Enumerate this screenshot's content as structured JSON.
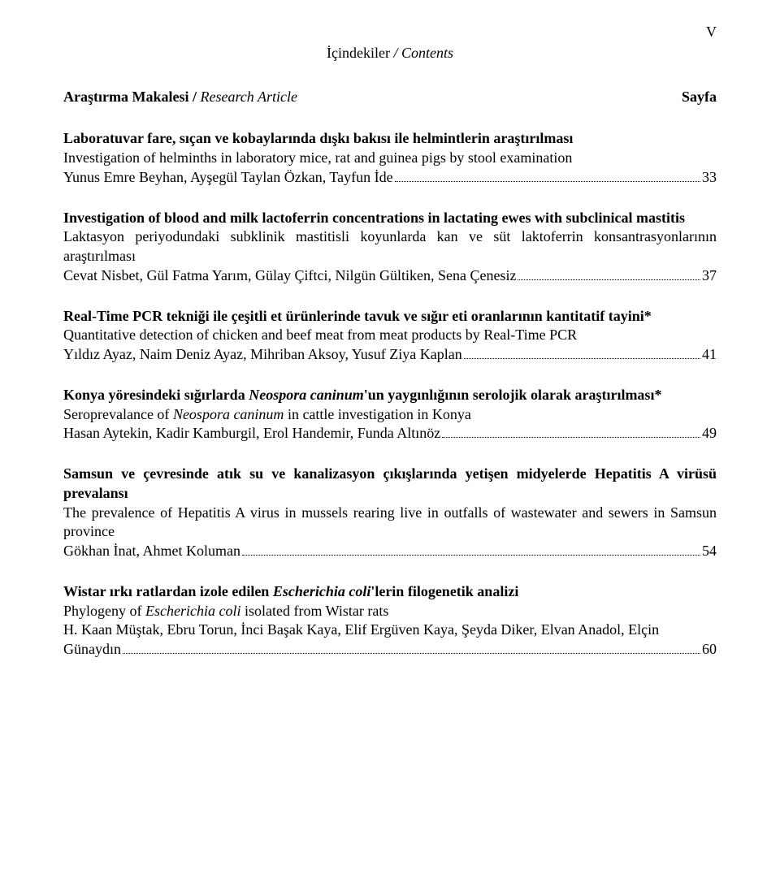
{
  "page_number_roman": "V",
  "header": {
    "tr": "İçindekiler",
    "en": "Contents"
  },
  "section": {
    "left_tr": "Araştırma Makalesi",
    "left_en": "Research Article",
    "right": "Sayfa"
  },
  "entries": [
    {
      "title_bold": "Laboratuvar fare, sıçan ve kobaylarında dışkı bakısı ile helmintlerin araştırılması",
      "subtitle": "Investigation of helminths in laboratory mice, rat and guinea pigs by stool examination",
      "authors": "Yunus Emre Beyhan, Ayşegül Taylan Özkan, Tayfun İde",
      "page": "33"
    },
    {
      "title_bold": "Investigation of blood and milk lactoferrin concentrations in lactating ewes with subclinical mastitis",
      "subtitle": "Laktasyon periyodundaki subklinik mastitisli koyunlarda kan ve süt laktoferrin konsantrasyonlarının araştırılması",
      "authors": "Cevat Nisbet, Gül Fatma Yarım, Gülay Çiftci, Nilgün Gültiken, Sena Çenesiz",
      "page": "37"
    },
    {
      "title_bold": "Real-Time PCR tekniği ile çeşitli et ürünlerinde tavuk ve sığır eti oranlarının kantitatif tayini*",
      "subtitle": "Quantitative detection of chicken and beef meat from meat products by Real-Time PCR",
      "authors": "Yıldız Ayaz, Naim Deniz Ayaz, Mihriban Aksoy, Yusuf Ziya Kaplan",
      "page": "41"
    },
    {
      "title_bold_pre": "Konya yöresindeki sığırlarda ",
      "title_bold_italic": "Neospora caninum",
      "title_bold_post": "'un yaygınlığının serolojik olarak araştırılması*",
      "subtitle_pre": "Seroprevalance of ",
      "subtitle_italic": "Neospora caninum",
      "subtitle_post": " in cattle investigation in Konya",
      "authors": "Hasan Aytekin, Kadir Kamburgil, Erol Handemir, Funda Altınöz",
      "page": "49"
    },
    {
      "title_bold": "Samsun ve çevresinde atık su ve kanalizasyon çıkışlarında yetişen midyelerde Hepatitis A virüsü prevalansı",
      "subtitle": "The prevalence of Hepatitis A virus in mussels rearing live in outfalls of wastewater and sewers in Samsun province",
      "authors": "Gökhan İnat, Ahmet Koluman",
      "page": "54"
    },
    {
      "title_bold_pre": "Wistar ırkı ratlardan izole edilen ",
      "title_bold_italic": "Escherichia coli",
      "title_bold_post": "'lerin filogenetik analizi",
      "subtitle_pre": "Phylogeny of ",
      "subtitle_italic": "Escherichia coli",
      "subtitle_post": " isolated from Wistar rats",
      "authors_pre": "H. Kaan Müştak, Ebru Torun, İnci Başak Kaya, Elif Ergüven Kaya, Şeyda Diker, Elvan Anadol, Elçin",
      "authors_last": "Günaydın",
      "page": "60"
    }
  ]
}
